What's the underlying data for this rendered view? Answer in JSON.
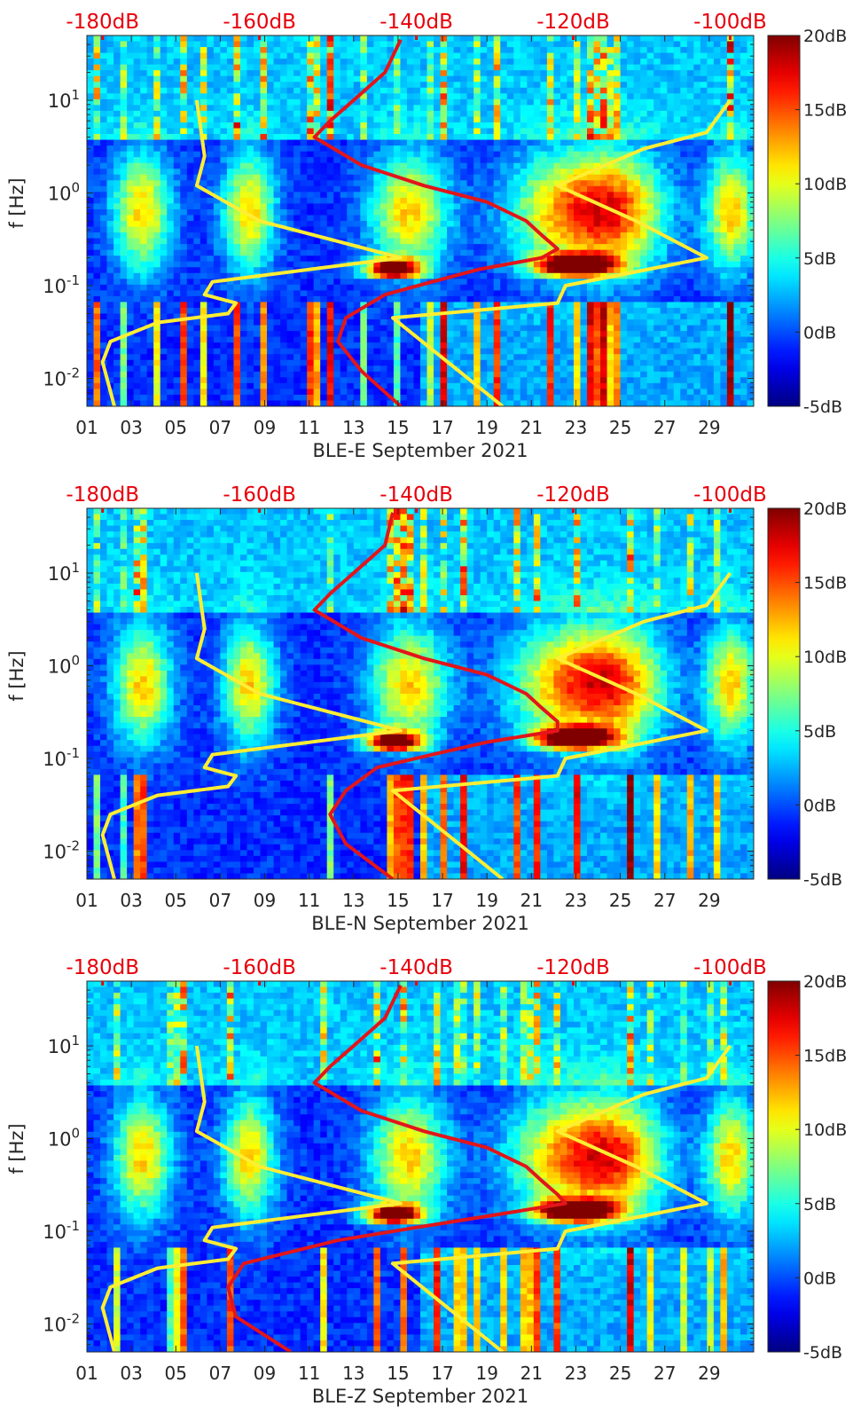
{
  "page": {
    "background": "#ffffff",
    "top_scale_color": "#e8000b",
    "model_curve_colors": {
      "red": "#e3151a",
      "yellow": "#ffee33"
    }
  },
  "chart_data": [
    {
      "type": "heatmap",
      "title": "",
      "xlabel": "BLE-E September 2021",
      "ylabel": "f [Hz]",
      "x_ticks": [
        "01",
        "03",
        "05",
        "07",
        "09",
        "11",
        "13",
        "15",
        "17",
        "19",
        "21",
        "23",
        "25",
        "27",
        "29"
      ],
      "x_range": [
        1,
        31
      ],
      "y_scale": "log",
      "y_range": [
        0.005,
        50
      ],
      "y_ticks": [
        "10^-2",
        "10^-1",
        "10^0",
        "10^1"
      ],
      "top_scale_labels": [
        "-180dB",
        "-160dB",
        "-140dB",
        "-120dB",
        "-100dB"
      ],
      "colorbar": {
        "labels": [
          "-5dB",
          "0dB",
          "5dB",
          "10dB",
          "15dB",
          "20dB"
        ],
        "range": [
          -5,
          20
        ],
        "colormap": "jet"
      },
      "grid": false,
      "red_curve_f_dB": [
        [
          0.005,
          -142
        ],
        [
          0.012,
          -147
        ],
        [
          0.025,
          -150
        ],
        [
          0.045,
          -149
        ],
        [
          0.08,
          -144
        ],
        [
          0.11,
          -138
        ],
        [
          0.15,
          -132
        ],
        [
          0.2,
          -124
        ],
        [
          0.25,
          -122
        ],
        [
          0.35,
          -124
        ],
        [
          0.5,
          -126
        ],
        [
          0.8,
          -131
        ],
        [
          1.2,
          -139
        ],
        [
          2,
          -147
        ],
        [
          4,
          -153
        ],
        [
          6,
          -151
        ],
        [
          10,
          -148
        ],
        [
          20,
          -144
        ],
        [
          45,
          -142
        ]
      ],
      "yellow_curves_f_dB": [
        [
          [
            0.005,
            -178.5
          ],
          [
            0.015,
            -180
          ],
          [
            0.025,
            -179
          ],
          [
            0.04,
            -173
          ],
          [
            0.05,
            -164
          ],
          [
            0.065,
            -163
          ],
          [
            0.08,
            -167
          ],
          [
            0.11,
            -166
          ],
          [
            0.2,
            -142
          ],
          [
            0.5,
            -160
          ],
          [
            1.2,
            -168
          ],
          [
            2.5,
            -167
          ],
          [
            10,
            -168
          ]
        ],
        [
          [
            0.005,
            -129
          ],
          [
            0.045,
            -143
          ],
          [
            0.065,
            -122
          ],
          [
            0.1,
            -121
          ],
          [
            0.2,
            -103
          ],
          [
            0.5,
            -112
          ],
          [
            1.2,
            -122
          ],
          [
            3,
            -111
          ],
          [
            4.5,
            -103
          ],
          [
            10,
            -100
          ]
        ]
      ]
    },
    {
      "type": "heatmap",
      "title": "",
      "xlabel": "BLE-N September 2021",
      "ylabel": "f [Hz]",
      "x_ticks": [
        "01",
        "03",
        "05",
        "07",
        "09",
        "11",
        "13",
        "15",
        "17",
        "19",
        "21",
        "23",
        "25",
        "27",
        "29"
      ],
      "x_range": [
        1,
        31
      ],
      "y_scale": "log",
      "y_range": [
        0.005,
        50
      ],
      "y_ticks": [
        "10^-2",
        "10^-1",
        "10^0",
        "10^1"
      ],
      "top_scale_labels": [
        "-180dB",
        "-160dB",
        "-140dB",
        "-120dB",
        "-100dB"
      ],
      "colorbar": {
        "labels": [
          "-5dB",
          "0dB",
          "5dB",
          "10dB",
          "15dB",
          "20dB"
        ],
        "range": [
          -5,
          20
        ],
        "colormap": "jet"
      },
      "grid": false,
      "red_curve_f_dB": [
        [
          0.005,
          -143
        ],
        [
          0.012,
          -149
        ],
        [
          0.025,
          -151
        ],
        [
          0.045,
          -149
        ],
        [
          0.08,
          -145
        ],
        [
          0.11,
          -138
        ],
        [
          0.15,
          -131
        ],
        [
          0.2,
          -122
        ],
        [
          0.25,
          -122
        ],
        [
          0.35,
          -124
        ],
        [
          0.5,
          -126
        ],
        [
          0.8,
          -131
        ],
        [
          1.2,
          -139
        ],
        [
          2,
          -147
        ],
        [
          4,
          -153
        ],
        [
          6,
          -151
        ],
        [
          10,
          -148
        ],
        [
          20,
          -144
        ],
        [
          45,
          -143
        ]
      ],
      "yellow_curves_f_dB": [
        [
          [
            0.005,
            -178.5
          ],
          [
            0.015,
            -180
          ],
          [
            0.025,
            -179
          ],
          [
            0.04,
            -173
          ],
          [
            0.05,
            -164
          ],
          [
            0.065,
            -163
          ],
          [
            0.08,
            -167
          ],
          [
            0.11,
            -166
          ],
          [
            0.2,
            -142
          ],
          [
            0.5,
            -160
          ],
          [
            1.2,
            -168
          ],
          [
            2.5,
            -167
          ],
          [
            10,
            -168
          ]
        ],
        [
          [
            0.005,
            -129
          ],
          [
            0.045,
            -143
          ],
          [
            0.065,
            -122
          ],
          [
            0.1,
            -121
          ],
          [
            0.2,
            -103
          ],
          [
            0.5,
            -112
          ],
          [
            1.2,
            -122
          ],
          [
            3,
            -111
          ],
          [
            4.5,
            -103
          ],
          [
            10,
            -100
          ]
        ]
      ]
    },
    {
      "type": "heatmap",
      "title": "",
      "xlabel": "BLE-Z September 2021",
      "ylabel": "f [Hz]",
      "x_ticks": [
        "01",
        "03",
        "05",
        "07",
        "09",
        "11",
        "13",
        "15",
        "17",
        "19",
        "21",
        "23",
        "25",
        "27",
        "29"
      ],
      "x_range": [
        1,
        31
      ],
      "y_scale": "log",
      "y_range": [
        0.005,
        50
      ],
      "y_ticks": [
        "10^-2",
        "10^-1",
        "10^0",
        "10^1"
      ],
      "top_scale_labels": [
        "-180dB",
        "-160dB",
        "-140dB",
        "-120dB",
        "-100dB"
      ],
      "colorbar": {
        "labels": [
          "-5dB",
          "0dB",
          "5dB",
          "10dB",
          "15dB",
          "20dB"
        ],
        "range": [
          -5,
          20
        ],
        "colormap": "jet"
      },
      "grid": false,
      "red_curve_f_dB": [
        [
          0.005,
          -156
        ],
        [
          0.012,
          -163
        ],
        [
          0.025,
          -164
        ],
        [
          0.045,
          -162
        ],
        [
          0.08,
          -150
        ],
        [
          0.11,
          -140
        ],
        [
          0.15,
          -130
        ],
        [
          0.2,
          -121
        ],
        [
          0.25,
          -122
        ],
        [
          0.35,
          -124
        ],
        [
          0.5,
          -126
        ],
        [
          0.8,
          -131
        ],
        [
          1.2,
          -139
        ],
        [
          2,
          -147
        ],
        [
          4,
          -153
        ],
        [
          6,
          -151
        ],
        [
          10,
          -148
        ],
        [
          20,
          -144
        ],
        [
          45,
          -142
        ]
      ],
      "yellow_curves_f_dB": [
        [
          [
            0.005,
            -178.5
          ],
          [
            0.015,
            -180
          ],
          [
            0.025,
            -179
          ],
          [
            0.04,
            -173
          ],
          [
            0.05,
            -164
          ],
          [
            0.065,
            -163
          ],
          [
            0.08,
            -167
          ],
          [
            0.11,
            -166
          ],
          [
            0.2,
            -142
          ],
          [
            0.5,
            -160
          ],
          [
            1.2,
            -168
          ],
          [
            2.5,
            -167
          ],
          [
            10,
            -168
          ]
        ],
        [
          [
            0.005,
            -129
          ],
          [
            0.045,
            -143
          ],
          [
            0.065,
            -122
          ],
          [
            0.1,
            -121
          ],
          [
            0.2,
            -103
          ],
          [
            0.5,
            -112
          ],
          [
            1.2,
            -122
          ],
          [
            3,
            -111
          ],
          [
            4.5,
            -103
          ],
          [
            10,
            -100
          ]
        ]
      ]
    }
  ]
}
